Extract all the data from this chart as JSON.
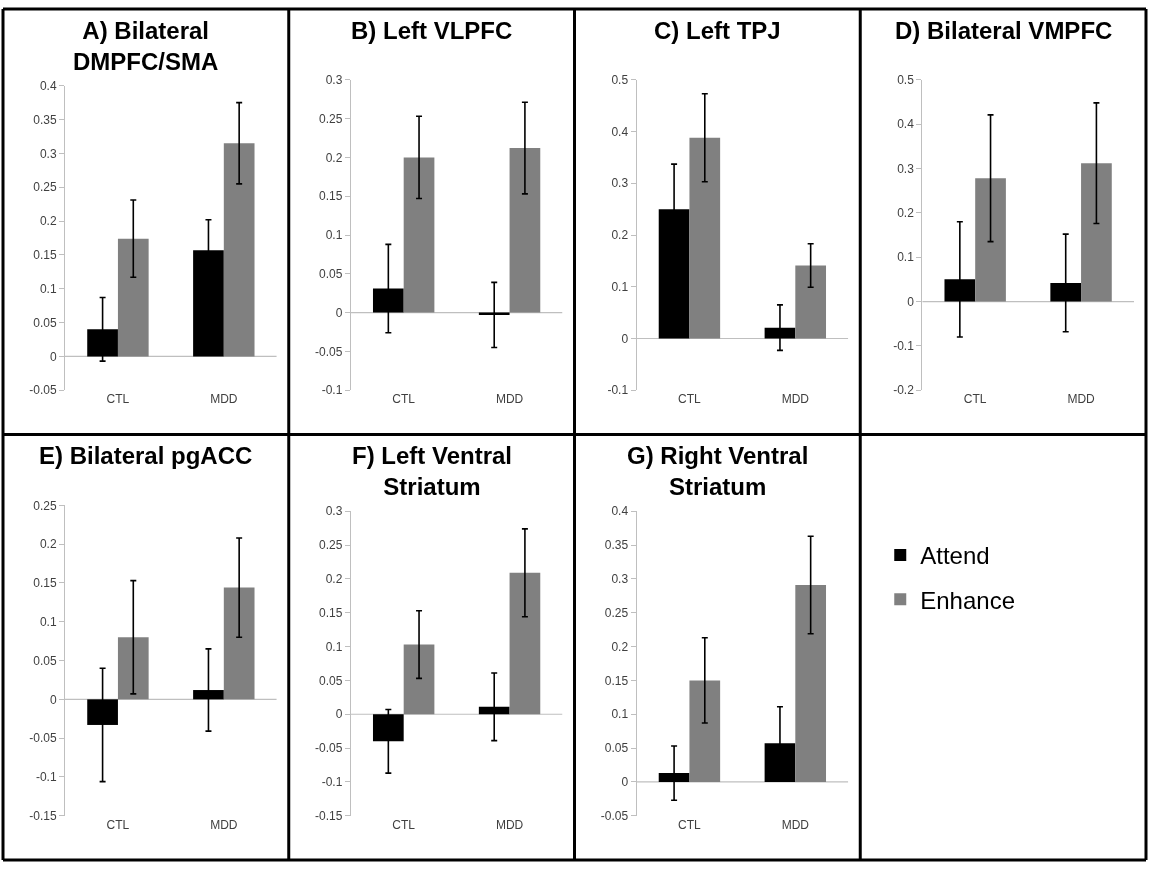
{
  "chart_data": [
    {
      "type": "bar",
      "title": "A) Bilateral DMPFC/SMA",
      "categories": [
        "CTL",
        "MDD"
      ],
      "ylim": [
        -0.05,
        0.4
      ],
      "yticks": [
        -0.05,
        0,
        0.05,
        0.1,
        0.15,
        0.2,
        0.25,
        0.3,
        0.35,
        0.4
      ],
      "legend": "right",
      "series": [
        {
          "name": "Attend",
          "color": "#000000",
          "values": [
            0.04,
            0.157
          ],
          "errors": [
            0.047,
            0.045
          ]
        },
        {
          "name": "Enhance",
          "color": "#808080",
          "values": [
            0.174,
            0.315
          ],
          "errors": [
            0.057,
            0.06
          ]
        }
      ]
    },
    {
      "type": "bar",
      "title": "B) Left VLPFC",
      "categories": [
        "CTL",
        "MDD"
      ],
      "ylim": [
        -0.1,
        0.3
      ],
      "yticks": [
        -0.1,
        -0.05,
        0,
        0.05,
        0.1,
        0.15,
        0.2,
        0.25,
        0.3
      ],
      "series": [
        {
          "color": "#000000",
          "values": [
            0.031,
            -0.003
          ],
          "errors": [
            0.057,
            0.042
          ]
        },
        {
          "color": "#808080",
          "values": [
            0.2,
            0.212
          ],
          "errors": [
            0.053,
            0.059
          ]
        }
      ]
    },
    {
      "type": "bar",
      "title": "C) Left TPJ",
      "categories": [
        "CTL",
        "MDD"
      ],
      "ylim": [
        -0.1,
        0.5
      ],
      "yticks": [
        -0.1,
        0,
        0.1,
        0.2,
        0.3,
        0.4,
        0.5
      ],
      "series": [
        {
          "color": "#000000",
          "values": [
            0.25,
            0.021
          ],
          "errors": [
            0.087,
            0.044
          ]
        },
        {
          "color": "#808080",
          "values": [
            0.388,
            0.141
          ],
          "errors": [
            0.085,
            0.042
          ]
        }
      ]
    },
    {
      "type": "bar",
      "title": "D) Bilateral VMPFC",
      "categories": [
        "CTL",
        "MDD"
      ],
      "ylim": [
        -0.2,
        0.5
      ],
      "yticks": [
        -0.2,
        -0.1,
        0,
        0.1,
        0.2,
        0.3,
        0.4,
        0.5
      ],
      "series": [
        {
          "color": "#000000",
          "values": [
            0.05,
            0.042
          ],
          "errors": [
            0.13,
            0.11
          ]
        },
        {
          "color": "#808080",
          "values": [
            0.278,
            0.312
          ],
          "errors": [
            0.143,
            0.136
          ]
        }
      ]
    },
    {
      "type": "bar",
      "title": "E) Bilateral pgACC",
      "categories": [
        "CTL",
        "MDD"
      ],
      "ylim": [
        -0.15,
        0.25
      ],
      "yticks": [
        -0.15,
        -0.1,
        -0.05,
        0,
        0.05,
        0.1,
        0.15,
        0.2,
        0.25
      ],
      "series": [
        {
          "color": "#000000",
          "values": [
            -0.033,
            0.012
          ],
          "errors": [
            0.073,
            0.053
          ]
        },
        {
          "color": "#808080",
          "values": [
            0.08,
            0.144
          ],
          "errors": [
            0.073,
            0.064
          ]
        }
      ]
    },
    {
      "type": "bar",
      "title": "F) Left Ventral Striatum",
      "categories": [
        "CTL",
        "MDD"
      ],
      "ylim": [
        -0.15,
        0.3
      ],
      "yticks": [
        -0.15,
        -0.1,
        -0.05,
        0,
        0.05,
        0.1,
        0.15,
        0.2,
        0.25,
        0.3
      ],
      "series": [
        {
          "color": "#000000",
          "values": [
            -0.04,
            0.011
          ],
          "errors": [
            0.047,
            0.05
          ]
        },
        {
          "color": "#808080",
          "values": [
            0.103,
            0.209
          ],
          "errors": [
            0.05,
            0.065
          ]
        }
      ]
    },
    {
      "type": "bar",
      "title": "G) Right Ventral Striatum",
      "categories": [
        "CTL",
        "MDD"
      ],
      "ylim": [
        -0.05,
        0.4
      ],
      "yticks": [
        -0.05,
        0,
        0.05,
        0.1,
        0.15,
        0.2,
        0.25,
        0.3,
        0.35,
        0.4
      ],
      "series": [
        {
          "color": "#000000",
          "values": [
            0.013,
            0.057
          ],
          "errors": [
            0.04,
            0.054
          ]
        },
        {
          "color": "#808080",
          "values": [
            0.15,
            0.291
          ],
          "errors": [
            0.063,
            0.072
          ]
        }
      ]
    }
  ]
}
